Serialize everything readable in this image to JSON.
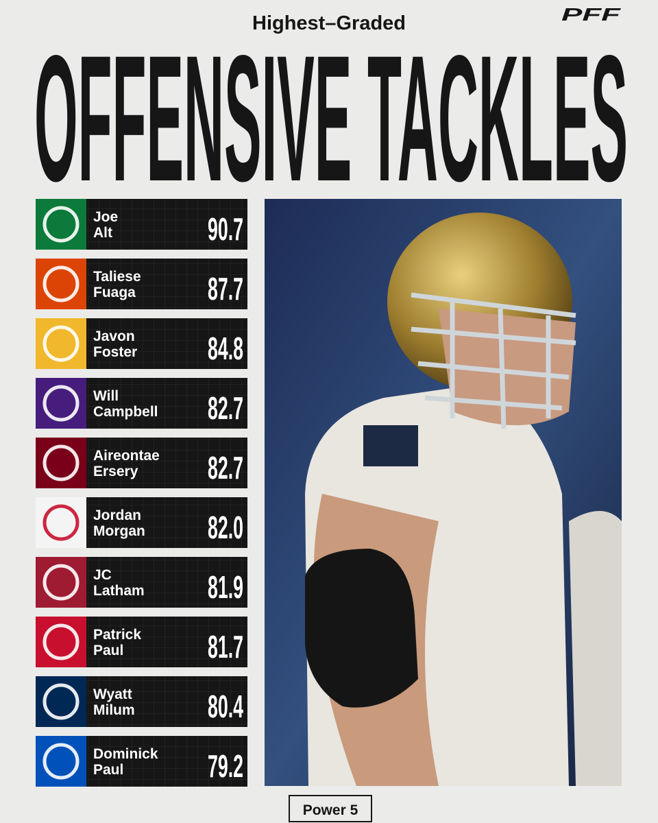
{
  "header": {
    "subtitle": "Highest–Graded",
    "title": "OFFENSIVE TACKLES",
    "logo": "PFF"
  },
  "players": [
    {
      "first": "Joe",
      "last": "Alt",
      "grade": "90.7",
      "color": "#0c7a3a"
    },
    {
      "first": "Taliese",
      "last": "Fuaga",
      "grade": "87.7",
      "color": "#dc4405"
    },
    {
      "first": "Javon",
      "last": "Foster",
      "grade": "84.8",
      "color": "#f1b82d"
    },
    {
      "first": "Will",
      "last": "Campbell",
      "grade": "82.7",
      "color": "#461d7c"
    },
    {
      "first": "Aireontae",
      "last": "Ersery",
      "grade": "82.7",
      "color": "#7a0019"
    },
    {
      "first": "Jordan",
      "last": "Morgan",
      "grade": "82.0",
      "color": "#f4f4f4"
    },
    {
      "first": "JC",
      "last": "Latham",
      "grade": "81.9",
      "color": "#9e1b32"
    },
    {
      "first": "Patrick",
      "last": "Paul",
      "grade": "81.7",
      "color": "#c8102e"
    },
    {
      "first": "Wyatt",
      "last": "Milum",
      "grade": "80.4",
      "color": "#002855"
    },
    {
      "first": "Dominick",
      "last": "Paul",
      "grade": "79.2",
      "color": "#0051ba"
    }
  ],
  "footer": {
    "label": "Power 5"
  }
}
